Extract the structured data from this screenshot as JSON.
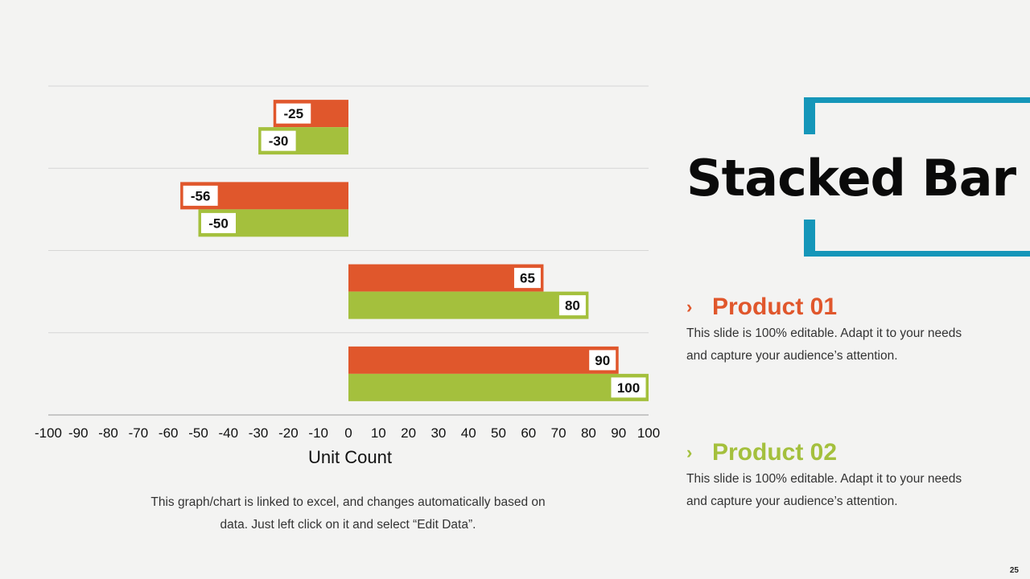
{
  "slide": {
    "title": "Stacked Bar",
    "page_number": "25",
    "note_lines": [
      "This graph/chart is linked to excel, and changes automatically  based on",
      "data. Just left click on it and select “Edit Data”."
    ],
    "accent_color": "#1596b9"
  },
  "legend": [
    {
      "name": "Product 01",
      "color": "#e0572c",
      "icon": "chevron-right-icon",
      "desc_lines": [
        "This slide is 100% editable. Adapt it to your needs",
        "and capture your audience’s attention."
      ]
    },
    {
      "name": "Product 02",
      "color": "#a4c03d",
      "icon": "chevron-right-icon",
      "desc_lines": [
        "This slide is 100% editable. Adapt it to your needs",
        "and capture your audience’s attention."
      ]
    }
  ],
  "chart_data": {
    "type": "bar",
    "orientation": "horizontal",
    "xlabel": "Unit Count",
    "xlim": [
      -100,
      100
    ],
    "xticks": [
      -100,
      -90,
      -80,
      -70,
      -60,
      -50,
      -40,
      -30,
      -20,
      -10,
      0,
      10,
      20,
      30,
      40,
      50,
      60,
      70,
      80,
      90,
      100
    ],
    "categories": [
      "",
      "",
      "",
      ""
    ],
    "series": [
      {
        "name": "Product 01",
        "color": "#e0572c",
        "values": [
          -25,
          -56,
          65,
          90
        ]
      },
      {
        "name": "Product 02",
        "color": "#a4c03d",
        "values": [
          -30,
          -50,
          80,
          100
        ]
      }
    ],
    "grid": true,
    "data_labels": true
  }
}
